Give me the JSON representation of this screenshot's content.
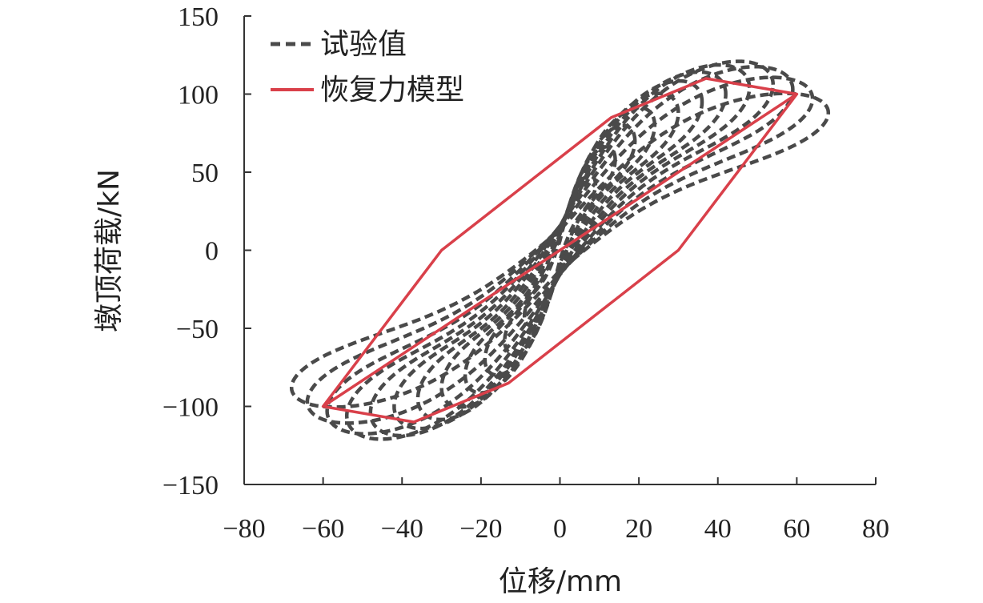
{
  "chart_data": {
    "type": "line",
    "xlabel": "位移/mm",
    "ylabel": "墩顶荷载/kN",
    "xlim": [
      -80,
      80
    ],
    "ylim": [
      -150,
      150
    ],
    "x_ticks": [
      -80,
      -60,
      -40,
      -20,
      0,
      20,
      40,
      60,
      80
    ],
    "y_ticks": [
      -150,
      -100,
      -50,
      0,
      50,
      100,
      150
    ],
    "x_tick_labels": [
      "−80",
      "−60",
      "−40",
      "−20",
      "0",
      "20",
      "40",
      "60",
      "80"
    ],
    "y_tick_labels": [
      "−150",
      "−100",
      "−50",
      "0",
      "50",
      "100",
      "150"
    ],
    "grid": false,
    "legend_position": "top-left",
    "colors": {
      "test": "#4a4a4a",
      "model": "#d9404a",
      "axis": "#333333"
    },
    "series": [
      {
        "name": "试验值",
        "style": "dashed",
        "loops": [
          {
            "amp_x": 9,
            "peak_y": 42
          },
          {
            "amp_x": 14,
            "peak_y": 58
          },
          {
            "amp_x": 19,
            "peak_y": 70
          },
          {
            "amp_x": 24,
            "peak_y": 80
          },
          {
            "amp_x": 30,
            "peak_y": 88
          },
          {
            "amp_x": 36,
            "peak_y": 95
          },
          {
            "amp_x": 42,
            "peak_y": 100
          },
          {
            "amp_x": 48,
            "peak_y": 104
          },
          {
            "amp_x": 54,
            "peak_y": 106
          },
          {
            "amp_x": 59,
            "peak_y": 103
          },
          {
            "amp_x": 64,
            "peak_y": 97
          },
          {
            "amp_x": 68,
            "peak_y": 88
          }
        ]
      },
      {
        "name": "恢复力模型",
        "style": "solid",
        "points": [
          [
            -60,
            -100
          ],
          [
            60,
            100
          ],
          [
            37,
            110
          ],
          [
            13,
            85
          ],
          [
            -30,
            0
          ],
          [
            -60,
            -100
          ],
          [
            -37,
            -110
          ],
          [
            -13,
            -85
          ],
          [
            30,
            0
          ],
          [
            60,
            100
          ]
        ]
      }
    ]
  }
}
